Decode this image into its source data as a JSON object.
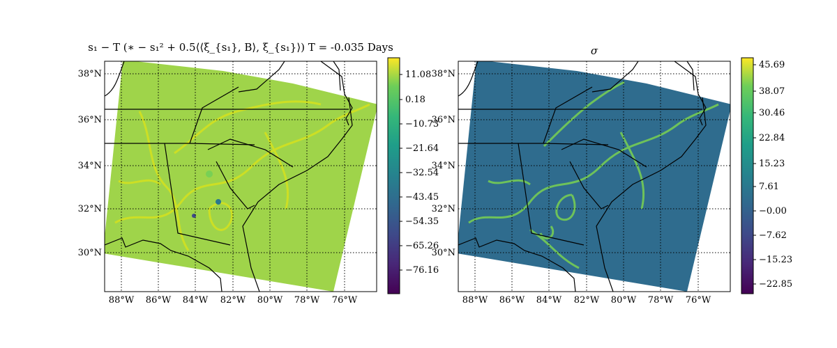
{
  "left_panel": {
    "title": "s₁ − T (∗ − s₁² + 0.5⟨⟨ξ_{s₁}, B⟩, ξ_{s₁}⟩)  T = -0.035 Days",
    "colorbar_ticks": [
      "11.08",
      "0.18",
      "−10.73",
      "−21.64",
      "−32.54",
      "−43.45",
      "−54.35",
      "−65.26",
      "−76.16"
    ]
  },
  "right_panel": {
    "title": "σ",
    "colorbar_ticks": [
      "45.69",
      "38.07",
      "30.46",
      "22.84",
      "15.23",
      "7.61",
      "−0.00",
      "−7.62",
      "−15.23",
      "−22.85"
    ]
  },
  "lat_labels": [
    "38°N",
    "36°N",
    "34°N",
    "32°N",
    "30°N"
  ],
  "lon_labels": [
    "88°W",
    "86°W",
    "84°W",
    "82°W",
    "80°W",
    "78°W",
    "76°W"
  ],
  "colors": {
    "left_field": "#9fd44a",
    "right_field": "#2f6c8e",
    "left_ridge": "#dde318",
    "right_ridge": "#7ad151"
  },
  "colormap": "viridis"
}
